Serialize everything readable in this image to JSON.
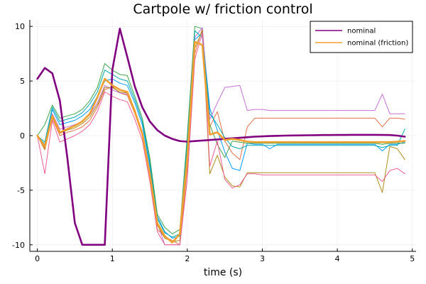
{
  "chart_data": {
    "type": "line",
    "title": "Cartpole w/ friction control",
    "xlabel": "time (s)",
    "ylabel": "",
    "xlim": [
      -0.1,
      5.05
    ],
    "ylim": [
      -10.6,
      10.6
    ],
    "x_ticks": [
      0,
      1,
      2,
      3,
      4,
      5
    ],
    "y_ticks": [
      -10,
      -5,
      0,
      5,
      10
    ],
    "x_tick_labels": [
      "0",
      "1",
      "2",
      "3",
      "4",
      "5"
    ],
    "y_tick_labels": [
      "-10",
      "-5",
      "0",
      "5",
      "10"
    ],
    "grid": true,
    "legend_position": "top-right",
    "x": [
      0,
      0.1,
      0.2,
      0.3,
      0.4,
      0.5,
      0.6,
      0.7,
      0.8,
      0.9,
      1.0,
      1.1,
      1.2,
      1.3,
      1.4,
      1.5,
      1.6,
      1.7,
      1.8,
      1.9,
      2.0,
      2.1,
      2.2,
      2.3,
      2.4,
      2.5,
      2.6,
      2.7,
      2.8,
      2.9,
      3.0,
      3.1,
      3.2,
      3.3,
      3.4,
      3.5,
      3.6,
      3.7,
      3.8,
      3.9,
      4.0,
      4.1,
      4.2,
      4.3,
      4.4,
      4.5,
      4.6,
      4.7,
      4.8,
      4.9
    ],
    "series": [
      {
        "name": "nominal",
        "color": "#800080",
        "width": 2.6,
        "values": [
          5.2,
          6.2,
          5.7,
          3.2,
          -2.0,
          -8.0,
          -10.0,
          -10.0,
          -10.0,
          -10.0,
          6.0,
          9.8,
          7.2,
          4.5,
          2.6,
          1.3,
          0.5,
          0.0,
          -0.3,
          -0.5,
          -0.55,
          -0.5,
          -0.45,
          -0.4,
          -0.35,
          -0.3,
          -0.25,
          -0.2,
          -0.15,
          -0.1,
          -0.07,
          -0.04,
          -0.02,
          0.0,
          0.01,
          0.02,
          0.03,
          0.04,
          0.05,
          0.05,
          0.06,
          0.06,
          0.07,
          0.07,
          0.07,
          0.07,
          0.06,
          0.05,
          0.0,
          -0.1
        ]
      },
      {
        "name": "nominal (friction)",
        "color": "#f0a030",
        "width": 2.6,
        "values": [
          0.0,
          -1.0,
          1.8,
          0.3,
          0.6,
          0.9,
          1.3,
          2.0,
          3.5,
          5.2,
          4.6,
          4.2,
          4.0,
          2.2,
          0.2,
          -3.5,
          -8.0,
          -9.2,
          -9.8,
          -9.0,
          -2.0,
          8.6,
          8.3,
          0.1,
          0.3,
          -0.4,
          -0.3,
          -0.4,
          -0.55,
          -0.6,
          -0.6,
          -0.6,
          -0.6,
          -0.6,
          -0.6,
          -0.6,
          -0.6,
          -0.6,
          -0.6,
          -0.6,
          -0.6,
          -0.6,
          -0.6,
          -0.6,
          -0.6,
          -0.6,
          -0.6,
          -0.6,
          -0.55,
          -0.5
        ]
      },
      {
        "name": "",
        "color": "#009af9",
        "width": 1.0,
        "values": [
          0.0,
          -0.8,
          2.4,
          1.0,
          1.2,
          1.4,
          1.8,
          2.4,
          3.6,
          5.0,
          5.2,
          4.8,
          4.6,
          3.0,
          1.0,
          -2.8,
          -7.4,
          -8.8,
          -9.4,
          -9.2,
          -1.0,
          8.8,
          9.4,
          2.5,
          0.5,
          -1.5,
          -3.0,
          -3.2,
          -0.7,
          -0.8,
          -0.8,
          -1.2,
          -0.8,
          -0.8,
          -0.8,
          -0.8,
          -0.8,
          -0.8,
          -0.8,
          -0.8,
          -0.8,
          -0.8,
          -0.8,
          -0.8,
          -0.8,
          -0.8,
          -1.4,
          -0.8,
          -0.8,
          -0.6
        ]
      },
      {
        "name": "",
        "color": "#e26f46",
        "width": 1.0,
        "values": [
          0.0,
          -1.3,
          1.6,
          0.0,
          0.3,
          0.5,
          0.8,
          1.4,
          2.6,
          4.2,
          4.5,
          3.9,
          3.7,
          2.0,
          0.0,
          -3.8,
          -8.6,
          -9.3,
          -9.6,
          -10.0,
          -3.0,
          7.5,
          9.8,
          0.8,
          2.2,
          -0.5,
          -1.6,
          -2.2,
          0.8,
          1.6,
          1.6,
          1.6,
          1.6,
          1.6,
          1.6,
          1.6,
          1.6,
          1.6,
          1.6,
          1.6,
          1.6,
          1.6,
          1.6,
          1.6,
          1.6,
          1.6,
          0.8,
          1.6,
          1.6,
          1.5
        ]
      },
      {
        "name": "",
        "color": "#3da44d",
        "width": 1.0,
        "values": [
          0.0,
          1.0,
          2.8,
          1.6,
          1.8,
          2.0,
          2.4,
          3.2,
          4.4,
          6.6,
          6.0,
          5.6,
          5.5,
          3.6,
          1.6,
          -2.0,
          -7.2,
          -8.4,
          -9.0,
          -8.6,
          0.0,
          10.0,
          9.8,
          1.0,
          -0.8,
          -2.0,
          -0.5,
          -0.6,
          -0.7,
          -0.7,
          -0.7,
          -0.7,
          -0.7,
          -0.7,
          -0.7,
          -0.7,
          -0.7,
          -0.7,
          -0.7,
          -0.7,
          -0.7,
          -0.7,
          -0.7,
          -0.7,
          -0.7,
          -0.7,
          -0.8,
          -0.7,
          -0.7,
          -0.7
        ]
      },
      {
        "name": "",
        "color": "#c271d2",
        "width": 1.0,
        "values": [
          0.0,
          -1.0,
          2.0,
          0.6,
          0.8,
          1.0,
          1.3,
          1.9,
          3.0,
          4.6,
          4.2,
          3.9,
          3.8,
          2.2,
          0.4,
          -3.2,
          -8.0,
          -10.0,
          -10.0,
          -10.0,
          -1.5,
          9.0,
          9.9,
          1.5,
          3.0,
          4.4,
          4.5,
          4.6,
          2.3,
          2.4,
          2.4,
          2.3,
          2.3,
          2.3,
          2.3,
          2.3,
          2.3,
          2.3,
          2.3,
          2.3,
          2.3,
          2.3,
          2.3,
          2.3,
          2.3,
          2.3,
          3.8,
          2.0,
          2.0,
          2.0
        ]
      },
      {
        "name": "",
        "color": "#ac8d18",
        "width": 1.0,
        "values": [
          0.0,
          -1.2,
          1.7,
          0.2,
          0.5,
          0.7,
          1.1,
          1.7,
          2.8,
          4.4,
          4.4,
          4.0,
          3.9,
          2.4,
          0.2,
          -3.6,
          -8.2,
          -9.4,
          -9.7,
          -9.6,
          -2.5,
          8.0,
          9.6,
          -3.5,
          -1.8,
          -3.8,
          -4.6,
          -4.7,
          -3.4,
          -3.4,
          -3.4,
          -3.4,
          -3.4,
          -3.4,
          -3.4,
          -3.4,
          -3.4,
          -3.4,
          -3.4,
          -3.4,
          -3.4,
          -3.4,
          -3.4,
          -3.4,
          -3.4,
          -3.4,
          -5.2,
          -1.0,
          -1.2,
          -2.2
        ]
      },
      {
        "name": "",
        "color": "#00a9ad",
        "width": 1.0,
        "values": [
          0.0,
          -0.6,
          2.6,
          1.3,
          1.5,
          1.7,
          2.1,
          2.9,
          4.0,
          6.0,
          5.6,
          5.2,
          5.0,
          3.3,
          1.3,
          -2.4,
          -7.6,
          -8.9,
          -9.3,
          -9.0,
          -0.5,
          9.6,
          9.0,
          2.0,
          1.0,
          -0.2,
          -1.0,
          -1.2,
          -0.9,
          -0.9,
          -0.9,
          -0.9,
          -0.9,
          -0.9,
          -0.9,
          -0.9,
          -0.9,
          -0.9,
          -0.9,
          -0.9,
          -0.9,
          -0.9,
          -0.9,
          -0.9,
          -0.9,
          -0.9,
          -1.1,
          -0.9,
          -0.9,
          0.6
        ]
      },
      {
        "name": "",
        "color": "#ed5d92",
        "width": 1.0,
        "values": [
          0.0,
          -3.5,
          1.4,
          -0.6,
          -0.3,
          0.0,
          0.4,
          1.0,
          2.2,
          4.0,
          3.6,
          3.3,
          3.1,
          1.5,
          -0.4,
          -4.2,
          -8.8,
          -10.0,
          -10.0,
          -10.0,
          -4.0,
          7.0,
          9.4,
          -2.8,
          -0.5,
          -4.0,
          -4.8,
          -4.5,
          -3.5,
          -3.5,
          -3.6,
          -3.6,
          -3.6,
          -3.6,
          -3.6,
          -3.6,
          -3.6,
          -3.6,
          -3.6,
          -3.6,
          -3.6,
          -3.6,
          -3.6,
          -3.6,
          -3.6,
          -3.6,
          -4.2,
          -3.2,
          -3.0,
          -3.5
        ]
      }
    ]
  }
}
